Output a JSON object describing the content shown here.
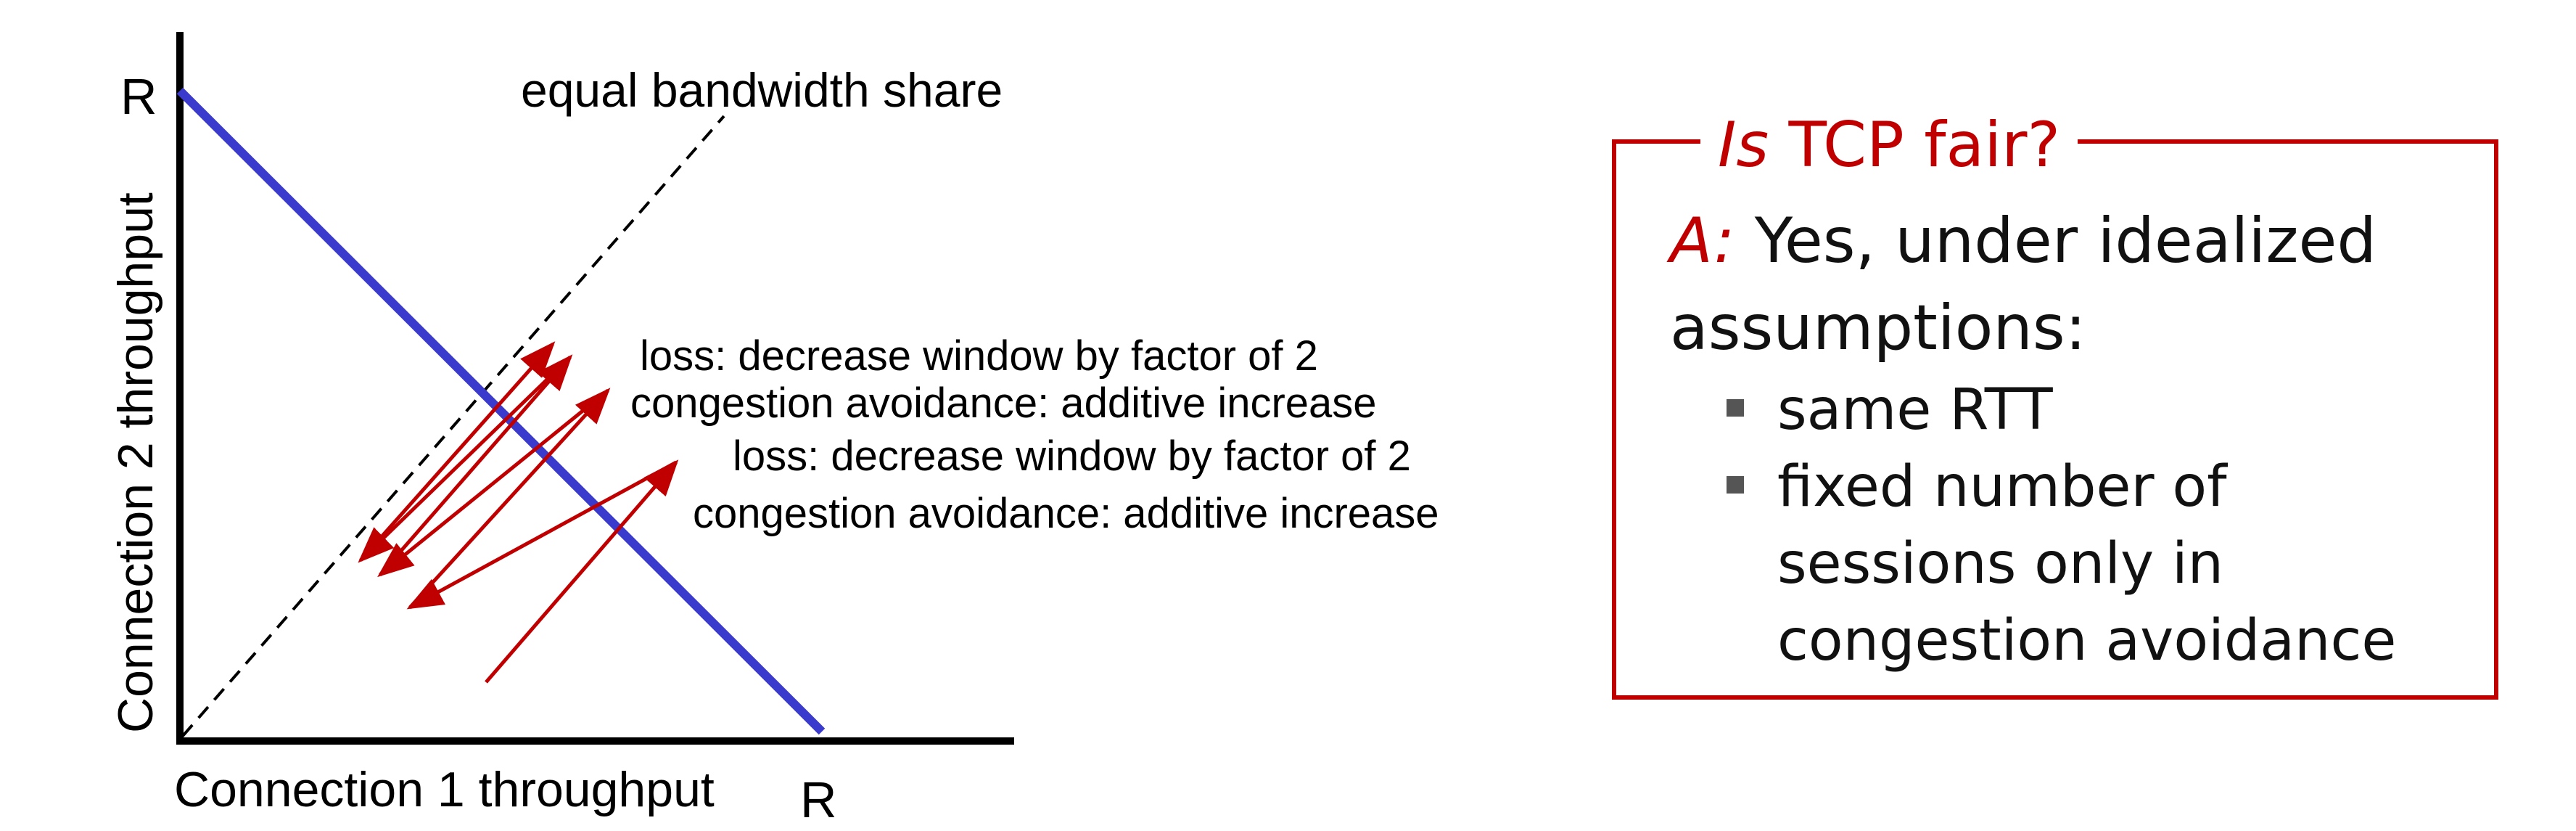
{
  "diagram": {
    "y_axis_label": "Connection 2 throughput",
    "x_axis_label": "Connection 1 throughput",
    "y_max_label": "R",
    "x_max_label": "R",
    "equal_share_label": "equal bandwidth share",
    "annotations": [
      "loss: decrease window by factor of 2",
      "congestion avoidance: additive increase",
      "loss: decrease window by factor of 2",
      "congestion avoidance: additive increase"
    ],
    "colors": {
      "capacity_line": "#3a3acc",
      "trajectory": "#c00000",
      "axis": "#000000"
    }
  },
  "panel": {
    "title_italic": "Is",
    "title_rest": " TCP fair?",
    "answer_label": "A:",
    "answer_text": " Yes, under idealized assumptions:",
    "bullets": [
      "same RTT",
      "fixed number of sessions only in congestion avoidance"
    ],
    "colors": {
      "accent": "#c00000"
    }
  }
}
